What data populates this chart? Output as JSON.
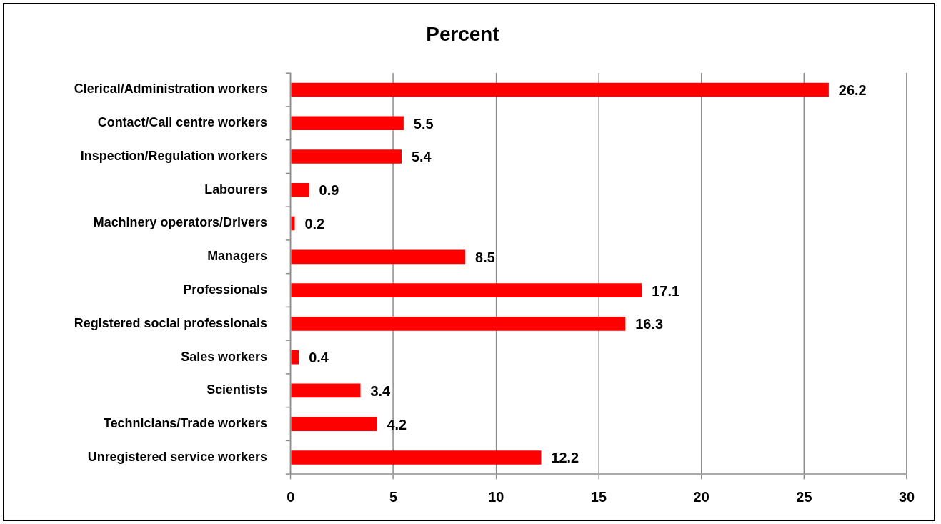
{
  "chart_data": {
    "type": "bar",
    "orientation": "horizontal",
    "title": "Percent",
    "categories": [
      "Clerical/Administration workers",
      "Contact/Call centre workers",
      "Inspection/Regulation workers",
      "Labourers",
      "Machinery operators/Drivers",
      "Managers",
      "Professionals",
      "Registered social professionals",
      "Sales workers",
      "Scientists",
      "Technicians/Trade workers",
      "Unregistered service workers"
    ],
    "values": [
      26.2,
      5.5,
      5.4,
      0.9,
      0.2,
      8.5,
      17.1,
      16.3,
      0.4,
      3.4,
      4.2,
      12.2
    ],
    "color": "#ff0000",
    "xlim": [
      0,
      30
    ],
    "xticks": [
      0,
      5,
      10,
      15,
      20,
      25,
      30
    ],
    "grid": "x",
    "data_labels": true
  }
}
